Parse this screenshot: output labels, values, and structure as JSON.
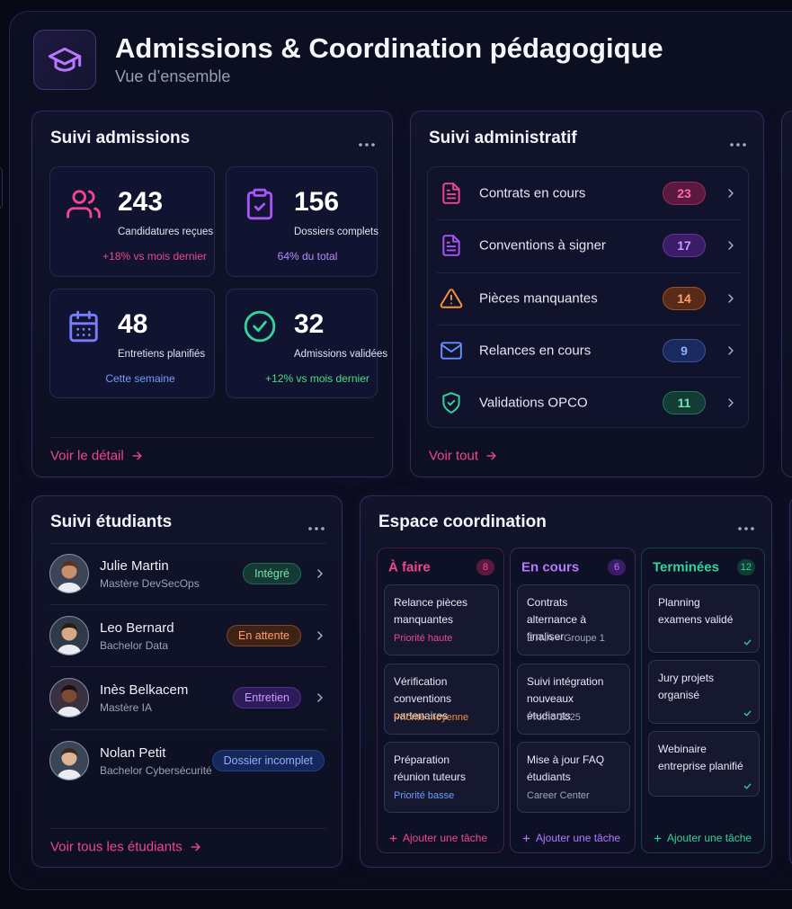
{
  "header": {
    "title": "Admissions & Coordination pédagogique",
    "subtitle": "Vue d’ensemble"
  },
  "admissions": {
    "title": "Suivi admissions",
    "stats": [
      {
        "value": 243,
        "label": "Candidatures reçues",
        "note": "+18% vs mois dernier"
      },
      {
        "value": 156,
        "label": "Dossiers complets",
        "note": "64% du total"
      },
      {
        "value": 48,
        "label": "Entretiens planifiés",
        "note": "Cette semaine"
      },
      {
        "value": 32,
        "label": "Admissions validées",
        "note": "+12% vs mois dernier"
      }
    ],
    "link": "Voir le détail"
  },
  "administratif": {
    "title": "Suivi administratif",
    "items": [
      {
        "label": "Contrats en cours",
        "count": 23
      },
      {
        "label": "Conventions à signer",
        "count": 17
      },
      {
        "label": "Pièces manquantes",
        "count": 14
      },
      {
        "label": "Relances en cours",
        "count": 9
      },
      {
        "label": "Validations OPCO",
        "count": 11
      }
    ],
    "link": "Voir tout"
  },
  "etudiants": {
    "title": "Suivi étudiants",
    "students": [
      {
        "name": "Julie Martin",
        "program": "Mastère DevSecOps",
        "status": "Intégré"
      },
      {
        "name": "Leo Bernard",
        "program": "Bachelor Data",
        "status": "En attente"
      },
      {
        "name": "Inès Belkacem",
        "program": "Mastère IA",
        "status": "Entretien"
      },
      {
        "name": "Nolan Petit",
        "program": "Bachelor Cybersécurité",
        "status": "Dossier incomplet"
      }
    ],
    "link": "Voir tous les étudiants"
  },
  "coordination": {
    "title": "Espace coordination",
    "columns": [
      {
        "title": "À faire",
        "count": 8,
        "tasks": [
          {
            "title": "Relance pièces manquantes",
            "meta": "Priorité haute"
          },
          {
            "title": "Vérification conventions partenaires",
            "meta": "Priorité moyenne"
          },
          {
            "title": "Préparation réunion tuteurs",
            "meta": "Priorité basse"
          }
        ],
        "add": "Ajouter une tâche"
      },
      {
        "title": "En cours",
        "count": 6,
        "tasks": [
          {
            "title": "Contrats alternance à finaliser",
            "meta": "ETNA – Groupe 1"
          },
          {
            "title": "Suivi intégration nouveaux étudiants",
            "meta": "Promo 2025"
          },
          {
            "title": "Mise à jour FAQ étudiants",
            "meta": "Career Center"
          }
        ],
        "add": "Ajouter une tâche"
      },
      {
        "title": "Terminées",
        "count": 12,
        "tasks": [
          {
            "title": "Planning examens validé"
          },
          {
            "title": "Jury projets organisé"
          },
          {
            "title": "Webinaire entreprise planifié"
          }
        ],
        "add": "Ajouter une tâche"
      }
    ]
  }
}
